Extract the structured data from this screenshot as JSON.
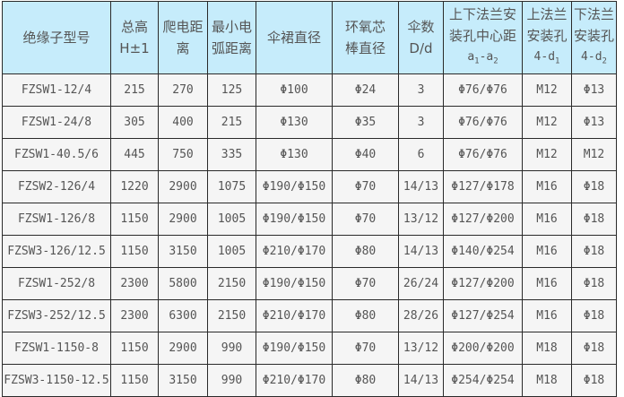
{
  "table": {
    "headers": [
      {
        "lines": [
          "绝缘子型号"
        ]
      },
      {
        "lines": [
          "总高",
          "H±1"
        ]
      },
      {
        "lines": [
          "爬电距",
          "离"
        ]
      },
      {
        "lines": [
          "最小电",
          "弧距离"
        ]
      },
      {
        "lines": [
          "伞裙直径"
        ]
      },
      {
        "lines": [
          "环氧芯",
          "棒直径"
        ]
      },
      {
        "lines": [
          "伞数",
          "D/d"
        ]
      },
      {
        "lines": [
          "上下法兰安",
          "装孔中心距",
          "a1-a2"
        ]
      },
      {
        "lines": [
          "上法兰",
          "安装孔",
          "4-d1"
        ]
      },
      {
        "lines": [
          "下法兰",
          "安装孔",
          "4-d2"
        ]
      }
    ],
    "rows": [
      [
        "FZSW1-12/4",
        "215",
        "270",
        "125",
        "Φ100",
        "Φ24",
        "3",
        "Φ76/Φ76",
        "M12",
        "Φ13"
      ],
      [
        "FZSW1-24/8",
        "305",
        "400",
        "215",
        "Φ130",
        "Φ35",
        "3",
        "Φ76/Φ76",
        "M12",
        "Φ13"
      ],
      [
        "FZSW1-40.5/6",
        "445",
        "750",
        "335",
        "Φ130",
        "Φ40",
        "6",
        "Φ76/Φ76",
        "M12",
        "M12"
      ],
      [
        "FZSW2-126/4",
        "1220",
        "2900",
        "1075",
        "Φ190/Φ150",
        "Φ70",
        "14/13",
        "Φ127/Φ178",
        "M16",
        "Φ18"
      ],
      [
        "FZSW1-126/8",
        "1150",
        "2900",
        "1005",
        "Φ190/Φ150",
        "Φ70",
        "13/12",
        "Φ127/Φ200",
        "M16",
        "Φ18"
      ],
      [
        "FZSW3-126/12.5",
        "1150",
        "3150",
        "1005",
        "Φ210/Φ170",
        "Φ80",
        "14/13",
        "Φ140/Φ254",
        "M16",
        "Φ18"
      ],
      [
        "FZSW1-252/8",
        "2300",
        "5800",
        "2150",
        "Φ190/Φ150",
        "Φ70",
        "26/24",
        "Φ127/Φ200",
        "M16",
        "Φ18"
      ],
      [
        "FZSW3-252/12.5",
        "2300",
        "6300",
        "2150",
        "Φ210/Φ170",
        "Φ80",
        "28/26",
        "Φ127/Φ254",
        "M16",
        "Φ18"
      ],
      [
        "FZSW1-1150-8",
        "1150",
        "2900",
        "990",
        "Φ190/Φ150",
        "Φ70",
        "13/12",
        "Φ200/Φ200",
        "M18",
        "Φ18"
      ],
      [
        "FZSW3-1150-12.5",
        "1150",
        "3150",
        "990",
        "Φ210/Φ170",
        "Φ80",
        "14/13",
        "Φ254/Φ254",
        "M18",
        "Φ18"
      ]
    ]
  },
  "colors": {
    "header_bg": "#c6ecfb",
    "row_bg": "#f5f5f5",
    "border": "#2a2a2a",
    "text": "#555555"
  }
}
